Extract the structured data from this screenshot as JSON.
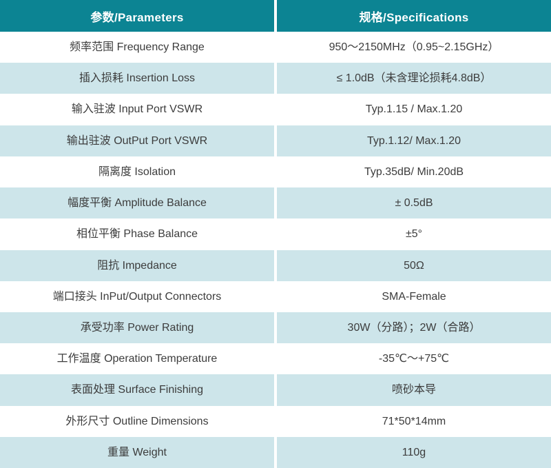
{
  "colors": {
    "header_bg": "#0c8493",
    "row_alt_bg": "#cde5ea",
    "header_text": "#ffffff",
    "body_text": "#3c3c3c",
    "divider": "#ffffff"
  },
  "table": {
    "headers": {
      "parameters": "参数/Parameters",
      "specifications": "规格/Specifications"
    },
    "rows": [
      {
        "param": "频率范围 Frequency Range",
        "spec": "950～2150MHz（0.95~2.15GHz）"
      },
      {
        "param": "插入损耗 Insertion Loss",
        "spec": "≤ 1.0dB（未含理论损耗4.8dB）"
      },
      {
        "param": "输入驻波 Input Port VSWR",
        "spec": "Typ.1.15 / Max.1.20"
      },
      {
        "param": "输出驻波 OutPut Port VSWR",
        "spec": "Typ.1.12/ Max.1.20"
      },
      {
        "param": "隔离度 Isolation",
        "spec": "Typ.35dB/ Min.20dB"
      },
      {
        "param": "幅度平衡 Amplitude Balance",
        "spec": "± 0.5dB"
      },
      {
        "param": "相位平衡 Phase Balance",
        "spec": "±5°"
      },
      {
        "param": "阻抗 Impedance",
        "spec": "50Ω"
      },
      {
        "param": "端口接头 InPut/Output Connectors",
        "spec": "SMA-Female"
      },
      {
        "param": "承受功率 Power Rating",
        "spec": "30W（分路）；2W（合路）"
      },
      {
        "param": "工作温度 Operation Temperature",
        "spec": "-35℃～+75℃"
      },
      {
        "param": "表面处理 Surface Finishing",
        "spec": "喷砂本导"
      },
      {
        "param": "外形尺寸 Outline Dimensions",
        "spec": "71*50*14mm"
      },
      {
        "param": "重量 Weight",
        "spec": "110g"
      }
    ]
  }
}
